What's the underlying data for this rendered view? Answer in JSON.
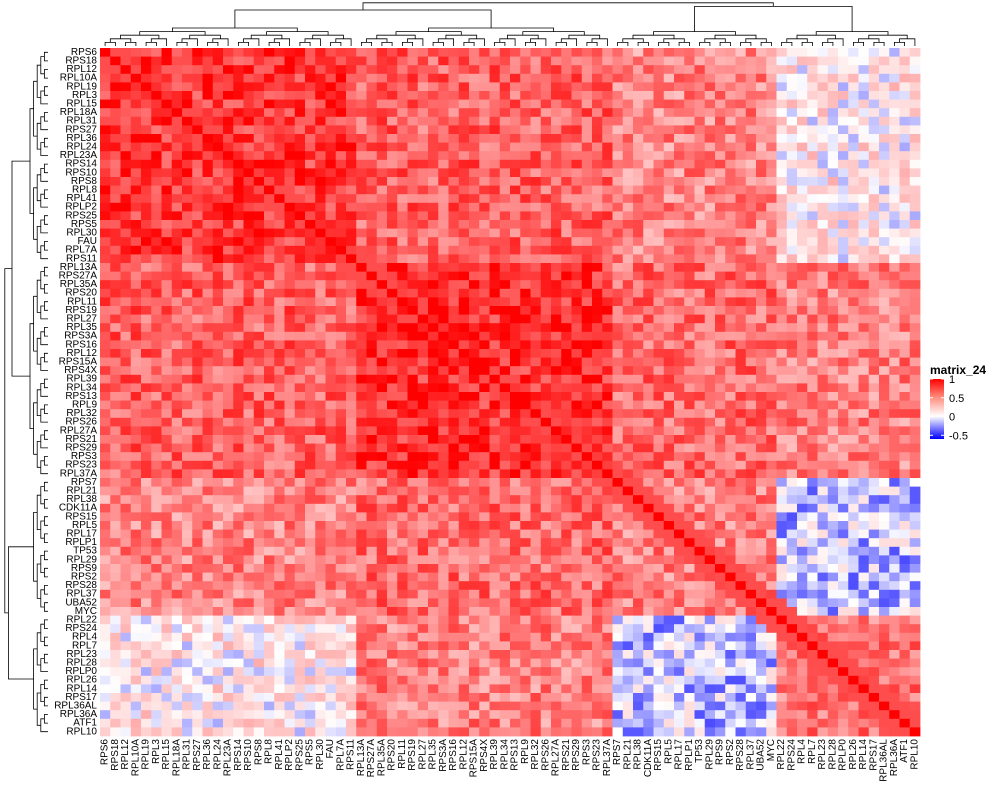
{
  "chart_data": {
    "type": "heatmap",
    "title": "",
    "xlabel": "",
    "ylabel": "",
    "row_labels": [
      "RPS6",
      "RPS18",
      "RPL12",
      "RPL10A",
      "RPL19",
      "RPL3",
      "RPL15",
      "RPL18A",
      "RPL31",
      "RPS27",
      "RPL36",
      "RPL24",
      "RPL23A",
      "RPS14",
      "RPS10",
      "RPS8",
      "RPL8",
      "RPL41",
      "RPLP2",
      "RPS25",
      "RPS5",
      "RPL30",
      "FAU",
      "RPL7A",
      "RPS11",
      "RPL13A",
      "RPS27A",
      "RPL35A",
      "RPS20",
      "RPL11",
      "RPS19",
      "RPL27",
      "RPL35",
      "RPS3A",
      "RPS16",
      "RPL12",
      "RPS15A",
      "RPS4X",
      "RPL39",
      "RPL34",
      "RPS13",
      "RPL9",
      "RPL32",
      "RPS26",
      "RPL27A",
      "RPS21",
      "RPS29",
      "RPS3",
      "RPS23",
      "RPL37A",
      "RPS7",
      "RPL21",
      "RPL38",
      "CDK11A",
      "RPS15",
      "RPL5",
      "RPL17",
      "RPLP1",
      "TP53",
      "RPL29",
      "RPS9",
      "RPS2",
      "RPS28",
      "RPL37",
      "UBA52",
      "MYC",
      "RPL22",
      "RPS24",
      "RPL4",
      "RPL7",
      "RPL23",
      "RPL28",
      "RPLP0",
      "RPL26",
      "RPL14",
      "RPS17",
      "RPL36AL",
      "RPL36A",
      "ATF1",
      "RPL10"
    ],
    "col_labels": [
      "RPS6",
      "RPS18",
      "RPL12",
      "RPL10A",
      "RPL19",
      "RPL3",
      "RPL15",
      "RPL18A",
      "RPL31",
      "RPS27",
      "RPL36",
      "RPL24",
      "RPL23A",
      "RPS14",
      "RPS10",
      "RPS8",
      "RPL8",
      "RPL41",
      "RPLP2",
      "RPS25",
      "RPS5",
      "RPL30",
      "FAU",
      "RPL7A",
      "RPS11",
      "RPL13A",
      "RPS27A",
      "RPL35A",
      "RPS20",
      "RPL11",
      "RPS19",
      "RPL27",
      "RPL35",
      "RPS3A",
      "RPS16",
      "RPL12",
      "RPS15A",
      "RPS4X",
      "RPL39",
      "RPL34",
      "RPS13",
      "RPL9",
      "RPL32",
      "RPS26",
      "RPL27A",
      "RPS21",
      "RPS29",
      "RPS3",
      "RPS23",
      "RPL37A",
      "RPS7",
      "RPL21",
      "RPL38",
      "CDK11A",
      "RPS15",
      "RPL5",
      "RPL17",
      "RPLP1",
      "TP53",
      "RPL29",
      "RPS9",
      "RPS2",
      "RPS28",
      "RPL37",
      "UBA52",
      "MYC",
      "RPL22",
      "RPS24",
      "RPL4",
      "RPL7",
      "RPL23",
      "RPL28",
      "RPLP0",
      "RPL26",
      "RPL14",
      "RPS17",
      "RPL36AL",
      "RPL36A",
      "ATF1",
      "RPL10"
    ],
    "blocks": [
      {
        "rows": [
          0,
          24
        ],
        "cols": [
          0,
          24
        ],
        "value": 0.78
      },
      {
        "rows": [
          25,
          49
        ],
        "cols": [
          25,
          49
        ],
        "value": 0.82
      },
      {
        "rows": [
          0,
          24
        ],
        "cols": [
          25,
          49
        ],
        "value": 0.62
      },
      {
        "rows": [
          0,
          24
        ],
        "cols": [
          50,
          65
        ],
        "value": 0.48
      },
      {
        "rows": [
          0,
          24
        ],
        "cols": [
          66,
          79
        ],
        "value": 0.08
      },
      {
        "rows": [
          25,
          49
        ],
        "cols": [
          50,
          65
        ],
        "value": 0.58
      },
      {
        "rows": [
          25,
          49
        ],
        "cols": [
          66,
          79
        ],
        "value": 0.5
      },
      {
        "rows": [
          50,
          65
        ],
        "cols": [
          0,
          24
        ],
        "value": 0.55
      },
      {
        "rows": [
          50,
          65
        ],
        "cols": [
          25,
          49
        ],
        "value": 0.5
      },
      {
        "rows": [
          50,
          65
        ],
        "cols": [
          50,
          65
        ],
        "value": 0.5
      },
      {
        "rows": [
          50,
          65
        ],
        "cols": [
          66,
          79
        ],
        "value": -0.1
      },
      {
        "rows": [
          66,
          79
        ],
        "cols": [
          0,
          24
        ],
        "value": 0.05
      },
      {
        "rows": [
          66,
          79
        ],
        "cols": [
          25,
          49
        ],
        "value": 0.42
      },
      {
        "rows": [
          66,
          79
        ],
        "cols": [
          50,
          65
        ],
        "value": -0.1
      },
      {
        "rows": [
          66,
          79
        ],
        "cols": [
          66,
          79
        ],
        "value": 0.55
      }
    ],
    "value_range": [
      -0.6,
      1
    ],
    "legend": {
      "title": "matrix_24",
      "ticks": [
        1,
        0.5,
        0,
        -0.5
      ],
      "tick_labels": [
        "1",
        "0.5",
        "0",
        "-0.5"
      ],
      "colors": {
        "high": "#ff0000",
        "mid": "#ffffff",
        "low": "#0000ff"
      },
      "placement": "right"
    },
    "dendrograms": {
      "rows": true,
      "columns": true
    },
    "grid": false
  }
}
